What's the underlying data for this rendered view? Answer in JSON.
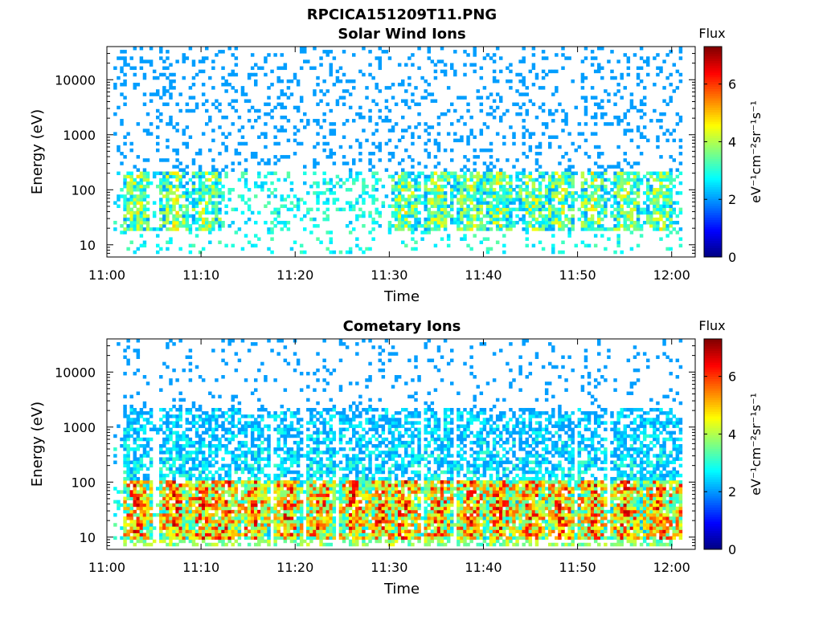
{
  "figure": {
    "title": "RPCICA151209T11.PNG"
  },
  "chart_data": [
    {
      "type": "heatmap",
      "title": "Solar Wind Ions",
      "xlabel": "Time",
      "ylabel": "Energy (eV)",
      "x_tick_labels": [
        "11:00",
        "11:10",
        "11:20",
        "11:30",
        "11:40",
        "11:50",
        "12:00"
      ],
      "x_tick_minutes": [
        0,
        10,
        20,
        30,
        40,
        50,
        60
      ],
      "xlim_minutes": [
        0,
        62.5
      ],
      "y_scale": "log",
      "y_tick_labels": [
        "10",
        "100",
        "1000",
        "10000"
      ],
      "y_tick_values": [
        10,
        100,
        1000,
        10000
      ],
      "ylim": [
        6,
        40000
      ],
      "colorbar": {
        "label": "Flux",
        "unit_label": "eV⁻¹cm⁻²sr⁻¹s⁻¹",
        "tick_labels": [
          "0",
          "2",
          "4",
          "6"
        ],
        "tick_values": [
          0,
          2,
          4,
          6
        ],
        "range": [
          0,
          7.3
        ],
        "colormap": "jet"
      },
      "bursts_minutes": [
        2.5,
        6.5,
        10,
        31,
        34.5,
        38,
        41,
        44.5,
        47.5,
        51,
        54.5,
        58
      ],
      "grid": false
    },
    {
      "type": "heatmap",
      "title": "Cometary Ions",
      "xlabel": "Time",
      "ylabel": "Energy (eV)",
      "x_tick_labels": [
        "11:00",
        "11:10",
        "11:20",
        "11:30",
        "11:40",
        "11:50",
        "12:00"
      ],
      "x_tick_minutes": [
        0,
        10,
        20,
        30,
        40,
        50,
        60
      ],
      "xlim_minutes": [
        0,
        62.5
      ],
      "y_scale": "log",
      "y_tick_labels": [
        "10",
        "100",
        "1000",
        "10000"
      ],
      "y_tick_values": [
        10,
        100,
        1000,
        10000
      ],
      "ylim": [
        6,
        40000
      ],
      "colorbar": {
        "label": "Flux",
        "unit_label": "eV⁻¹cm⁻²sr⁻¹s⁻¹",
        "tick_labels": [
          "0",
          "2",
          "4",
          "6"
        ],
        "tick_values": [
          0,
          2,
          4,
          6
        ],
        "range": [
          0,
          7.3
        ],
        "colormap": "jet"
      },
      "bursts_minutes": [
        2.5,
        6.5,
        9.5,
        12,
        15,
        18.5,
        22,
        25.5,
        28.5,
        31,
        34.5,
        38,
        41,
        44.5,
        47.5,
        51,
        54.5,
        58,
        61
      ],
      "grid": false
    }
  ]
}
